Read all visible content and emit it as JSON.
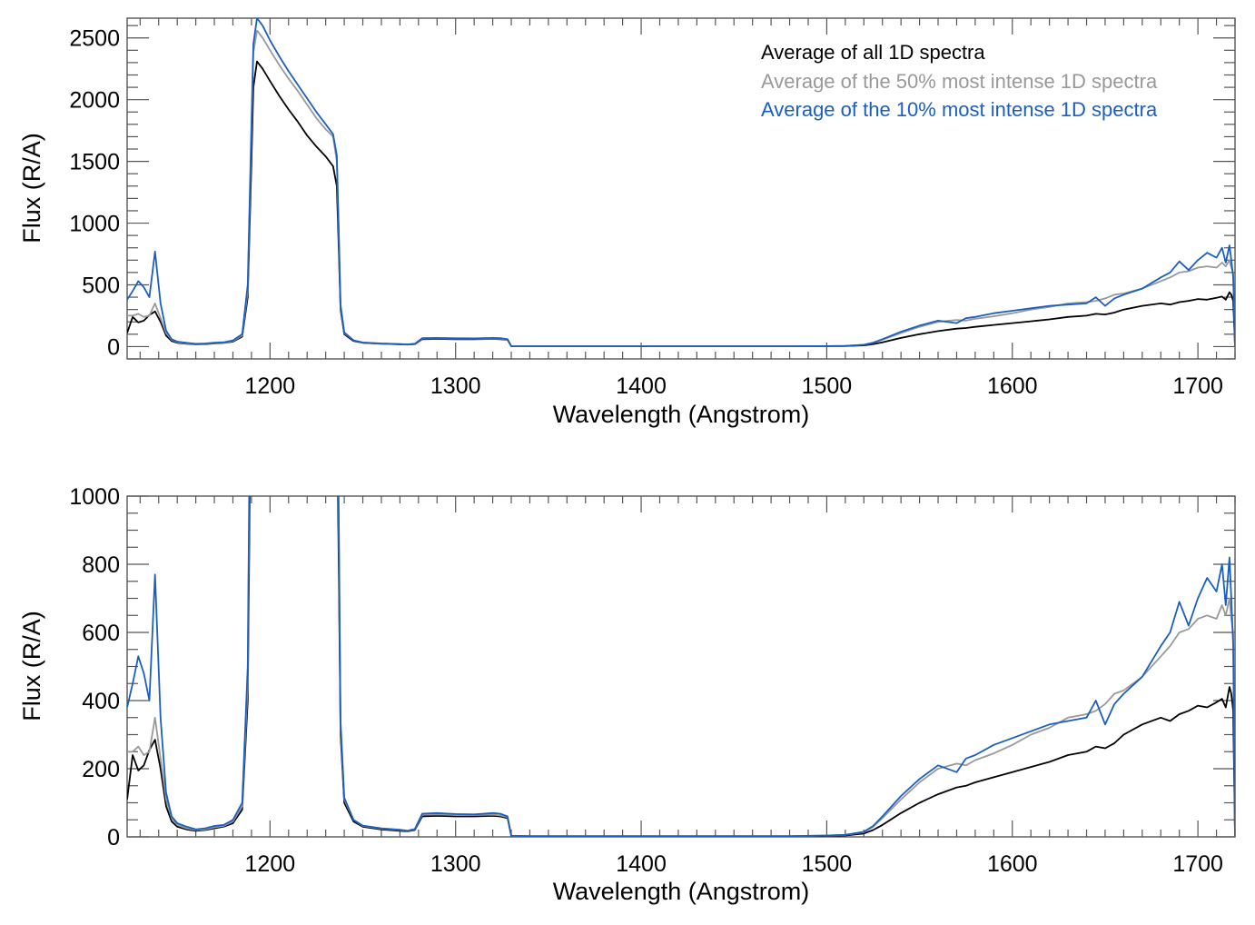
{
  "chart_data": [
    {
      "type": "line",
      "title": "",
      "xlabel": "Wavelength (Angstrom)",
      "ylabel": "Flux (R/A)",
      "xlim": [
        1123,
        1720
      ],
      "ylim": [
        -100,
        2660
      ],
      "xticks": [
        1200,
        1300,
        1400,
        1500,
        1600,
        1700
      ],
      "xtick_labels": [
        "1200",
        "1300",
        "1400",
        "1500",
        "1600",
        "1700"
      ],
      "yticks": [
        0,
        500,
        1000,
        1500,
        2000,
        2500
      ],
      "ytick_labels": [
        "0",
        "500",
        "1000",
        "1500",
        "2000",
        "2500"
      ],
      "x_minor_step": 10,
      "y_minor_step": 100,
      "grid": false,
      "legend_position": "top-right",
      "legend": [
        {
          "label": "Average of all 1D spectra",
          "color": "#000000"
        },
        {
          "label": "Average of the 50% most intense 1D spectra",
          "color": "#999999"
        },
        {
          "label": "Average of the 10% most intense 1D spectra",
          "color": "#1a5fc0"
        }
      ],
      "series_ref": "spectra"
    },
    {
      "type": "line",
      "title": "",
      "xlabel": "Wavelength (Angstrom)",
      "ylabel": "Flux (R/A)",
      "xlim": [
        1123,
        1720
      ],
      "ylim": [
        0,
        1000
      ],
      "xticks": [
        1200,
        1300,
        1400,
        1500,
        1600,
        1700
      ],
      "xtick_labels": [
        "1200",
        "1300",
        "1400",
        "1500",
        "1600",
        "1700"
      ],
      "yticks": [
        0,
        200,
        400,
        600,
        800,
        1000
      ],
      "ytick_labels": [
        "0",
        "200",
        "400",
        "600",
        "800",
        "1000"
      ],
      "x_minor_step": 10,
      "y_minor_step": 50,
      "grid": false,
      "series_ref": "spectra"
    }
  ],
  "spectra": {
    "x": [
      1123,
      1126,
      1129,
      1132,
      1135,
      1138,
      1141,
      1144,
      1147,
      1150,
      1155,
      1160,
      1165,
      1170,
      1175,
      1180,
      1185,
      1188,
      1190,
      1191,
      1193,
      1196,
      1200,
      1205,
      1210,
      1215,
      1220,
      1225,
      1230,
      1234,
      1236,
      1237,
      1238,
      1240,
      1245,
      1250,
      1260,
      1270,
      1274,
      1278,
      1282,
      1290,
      1300,
      1310,
      1320,
      1324,
      1328,
      1330,
      1340,
      1360,
      1380,
      1400,
      1420,
      1440,
      1460,
      1480,
      1500,
      1510,
      1520,
      1525,
      1530,
      1540,
      1550,
      1560,
      1570,
      1575,
      1580,
      1590,
      1600,
      1610,
      1620,
      1630,
      1640,
      1645,
      1650,
      1655,
      1660,
      1670,
      1680,
      1685,
      1690,
      1695,
      1700,
      1705,
      1710,
      1713,
      1715,
      1717,
      1718,
      1719,
      1720
    ],
    "series": [
      {
        "name": "Average of all 1D spectra",
        "color": "#000000",
        "values": [
          110,
          240,
          195,
          210,
          255,
          285,
          200,
          90,
          45,
          30,
          22,
          18,
          20,
          25,
          30,
          40,
          80,
          400,
          1500,
          2100,
          2310,
          2250,
          2150,
          2030,
          1920,
          1820,
          1710,
          1620,
          1540,
          1460,
          1300,
          800,
          300,
          100,
          45,
          30,
          22,
          18,
          16,
          20,
          60,
          62,
          60,
          60,
          62,
          60,
          55,
          3,
          2,
          2,
          2,
          2,
          2,
          2,
          2,
          2,
          3,
          4,
          10,
          20,
          35,
          70,
          100,
          125,
          145,
          150,
          160,
          175,
          190,
          205,
          220,
          240,
          250,
          265,
          260,
          275,
          300,
          330,
          350,
          340,
          360,
          370,
          385,
          380,
          395,
          405,
          380,
          440,
          420,
          370,
          0
        ]
      },
      {
        "name": "Average of the 50% most intense 1D spectra",
        "color": "#999999",
        "values": [
          250,
          250,
          265,
          240,
          250,
          350,
          230,
          110,
          55,
          35,
          25,
          20,
          22,
          28,
          32,
          45,
          90,
          450,
          1700,
          2380,
          2560,
          2500,
          2400,
          2280,
          2170,
          2070,
          1960,
          1850,
          1760,
          1700,
          1500,
          900,
          320,
          110,
          50,
          32,
          24,
          20,
          17,
          22,
          65,
          66,
          64,
          64,
          65,
          63,
          58,
          3,
          2,
          2,
          2,
          2,
          2,
          2,
          2,
          2,
          4,
          6,
          14,
          30,
          55,
          110,
          160,
          200,
          215,
          210,
          225,
          245,
          270,
          300,
          320,
          350,
          360,
          370,
          390,
          420,
          430,
          470,
          530,
          560,
          600,
          610,
          640,
          650,
          640,
          680,
          650,
          700,
          640,
          600,
          0
        ]
      },
      {
        "name": "Average of the 10% most intense 1D spectra",
        "color": "#1a5fc0",
        "values": [
          380,
          450,
          530,
          480,
          400,
          770,
          350,
          130,
          60,
          40,
          30,
          22,
          25,
          32,
          35,
          50,
          100,
          500,
          1800,
          2450,
          2660,
          2600,
          2480,
          2350,
          2230,
          2120,
          2010,
          1900,
          1800,
          1720,
          1550,
          950,
          340,
          115,
          50,
          33,
          25,
          21,
          18,
          23,
          68,
          70,
          67,
          66,
          70,
          68,
          60,
          3,
          2,
          2,
          2,
          2,
          2,
          2,
          2,
          2,
          4,
          6,
          15,
          32,
          60,
          120,
          170,
          210,
          190,
          230,
          240,
          270,
          290,
          310,
          330,
          340,
          350,
          400,
          330,
          390,
          420,
          470,
          560,
          600,
          690,
          620,
          700,
          760,
          720,
          800,
          680,
          820,
          700,
          560,
          0
        ]
      }
    ]
  }
}
